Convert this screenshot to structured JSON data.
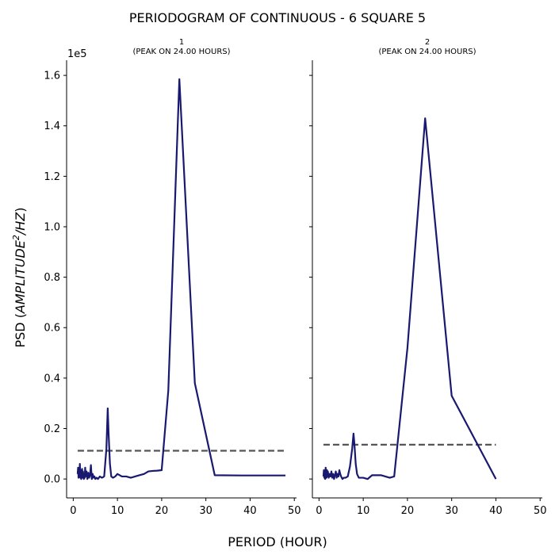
{
  "figure": {
    "title": "PERIODOGRAM OF CONTINUOUS - 6 SQUARE 5",
    "xlabel": "PERIOD (HOUR)",
    "ylabel_prefix": "PSD (",
    "ylabel_italic": "AMPLITUDE",
    "ylabel_sup": "2",
    "ylabel_italic2": "/HZ",
    "ylabel_suffix": ")",
    "y_offset_label": "1e5",
    "line_color": "#191970",
    "threshold_color": "#555555"
  },
  "chart_data": [
    {
      "type": "line",
      "title_line1": "1",
      "title_line2": "(PEAK ON 24.00 HOURS)",
      "xlim": [
        -1.5,
        50.5
      ],
      "ylim": [
        -0.075,
        1.66
      ],
      "xticks": [
        0,
        10,
        20,
        30,
        40,
        50
      ],
      "yticks": [
        0.0,
        0.2,
        0.4,
        0.6,
        0.8,
        1.0,
        1.2,
        1.4,
        1.6
      ],
      "ytick_labels": [
        "0.0",
        "0.2",
        "0.4",
        "0.6",
        "0.8",
        "1.0",
        "1.2",
        "1.4",
        "1.6"
      ],
      "y_scale_multiplier": 100000,
      "series": [
        {
          "x": [
            1.0,
            1.1,
            1.2,
            1.3,
            1.4,
            1.5,
            1.6,
            1.7,
            1.8,
            1.9,
            2.0,
            2.1,
            2.2,
            2.4,
            2.5,
            2.6,
            2.7,
            2.8,
            3.0,
            3.2,
            3.4,
            3.6,
            3.8,
            4.0,
            4.2,
            4.4,
            4.6,
            4.8,
            5.0,
            5.3,
            5.6,
            6.0,
            6.5,
            7.0,
            7.5,
            7.8,
            8.0,
            8.3,
            8.6,
            9.0,
            9.5,
            10.0,
            11.0,
            12.0,
            13.0,
            14.0,
            15.0,
            16.0,
            17.0,
            18.0,
            19.0,
            20.0,
            21.5,
            24.0,
            27.5,
            32.0,
            38.0,
            48.0
          ],
          "y": [
            0.02,
            0.045,
            0.005,
            0.03,
            0.01,
            0.06,
            0.005,
            0.035,
            0.0,
            0.02,
            0.04,
            0.005,
            0.03,
            0.0,
            0.02,
            0.005,
            0.045,
            0.01,
            0.03,
            0.0,
            0.025,
            0.005,
            0.015,
            0.055,
            0.0,
            0.02,
            0.005,
            0.01,
            0.0,
            0.005,
            0.0,
            0.01,
            0.005,
            0.01,
            0.12,
            0.28,
            0.18,
            0.06,
            0.01,
            0.005,
            0.01,
            0.02,
            0.01,
            0.01,
            0.005,
            0.01,
            0.015,
            0.02,
            0.03,
            0.032,
            0.033,
            0.035,
            0.35,
            1.585,
            0.38,
            0.015,
            0.014,
            0.014
          ]
        }
      ],
      "threshold": {
        "x": [
          1.0,
          48.0
        ],
        "y": 0.112
      }
    },
    {
      "type": "line",
      "title_line1": "2",
      "title_line2": "(PEAK ON 24.00 HOURS)",
      "xlim": [
        -1.5,
        50.5
      ],
      "ylim": [
        -0.075,
        1.66
      ],
      "xticks": [
        0,
        10,
        20,
        30,
        40,
        50
      ],
      "yticks": [
        0.0,
        0.2,
        0.4,
        0.6,
        0.8,
        1.0,
        1.2,
        1.4,
        1.6
      ],
      "ytick_labels": [],
      "y_scale_multiplier": 100000,
      "series": [
        {
          "x": [
            1.0,
            1.1,
            1.2,
            1.3,
            1.4,
            1.5,
            1.6,
            1.7,
            1.8,
            1.9,
            2.0,
            2.2,
            2.4,
            2.6,
            2.8,
            3.0,
            3.2,
            3.4,
            3.6,
            3.8,
            4.0,
            4.2,
            4.4,
            4.6,
            4.8,
            5.0,
            5.3,
            5.6,
            6.0,
            6.5,
            7.0,
            7.5,
            7.8,
            8.0,
            8.3,
            8.6,
            9.0,
            10.0,
            11.0,
            12.0,
            13.0,
            14.0,
            15.0,
            16.0,
            17.0,
            20.0,
            24.0,
            30.0,
            40.0
          ],
          "y": [
            0.01,
            0.035,
            0.005,
            0.03,
            0.0,
            0.045,
            0.02,
            0.005,
            0.035,
            0.01,
            0.03,
            0.005,
            0.02,
            0.01,
            0.03,
            0.005,
            0.02,
            0.0,
            0.015,
            0.03,
            0.005,
            0.02,
            0.01,
            0.035,
            0.02,
            0.01,
            0.0,
            0.005,
            0.005,
            0.01,
            0.05,
            0.12,
            0.18,
            0.14,
            0.06,
            0.02,
            0.005,
            0.005,
            0.0,
            0.015,
            0.015,
            0.015,
            0.01,
            0.005,
            0.01,
            0.52,
            1.43,
            0.33,
            0.0
          ]
        }
      ],
      "threshold": {
        "x": [
          1.0,
          40.0
        ],
        "y": 0.136
      }
    }
  ]
}
